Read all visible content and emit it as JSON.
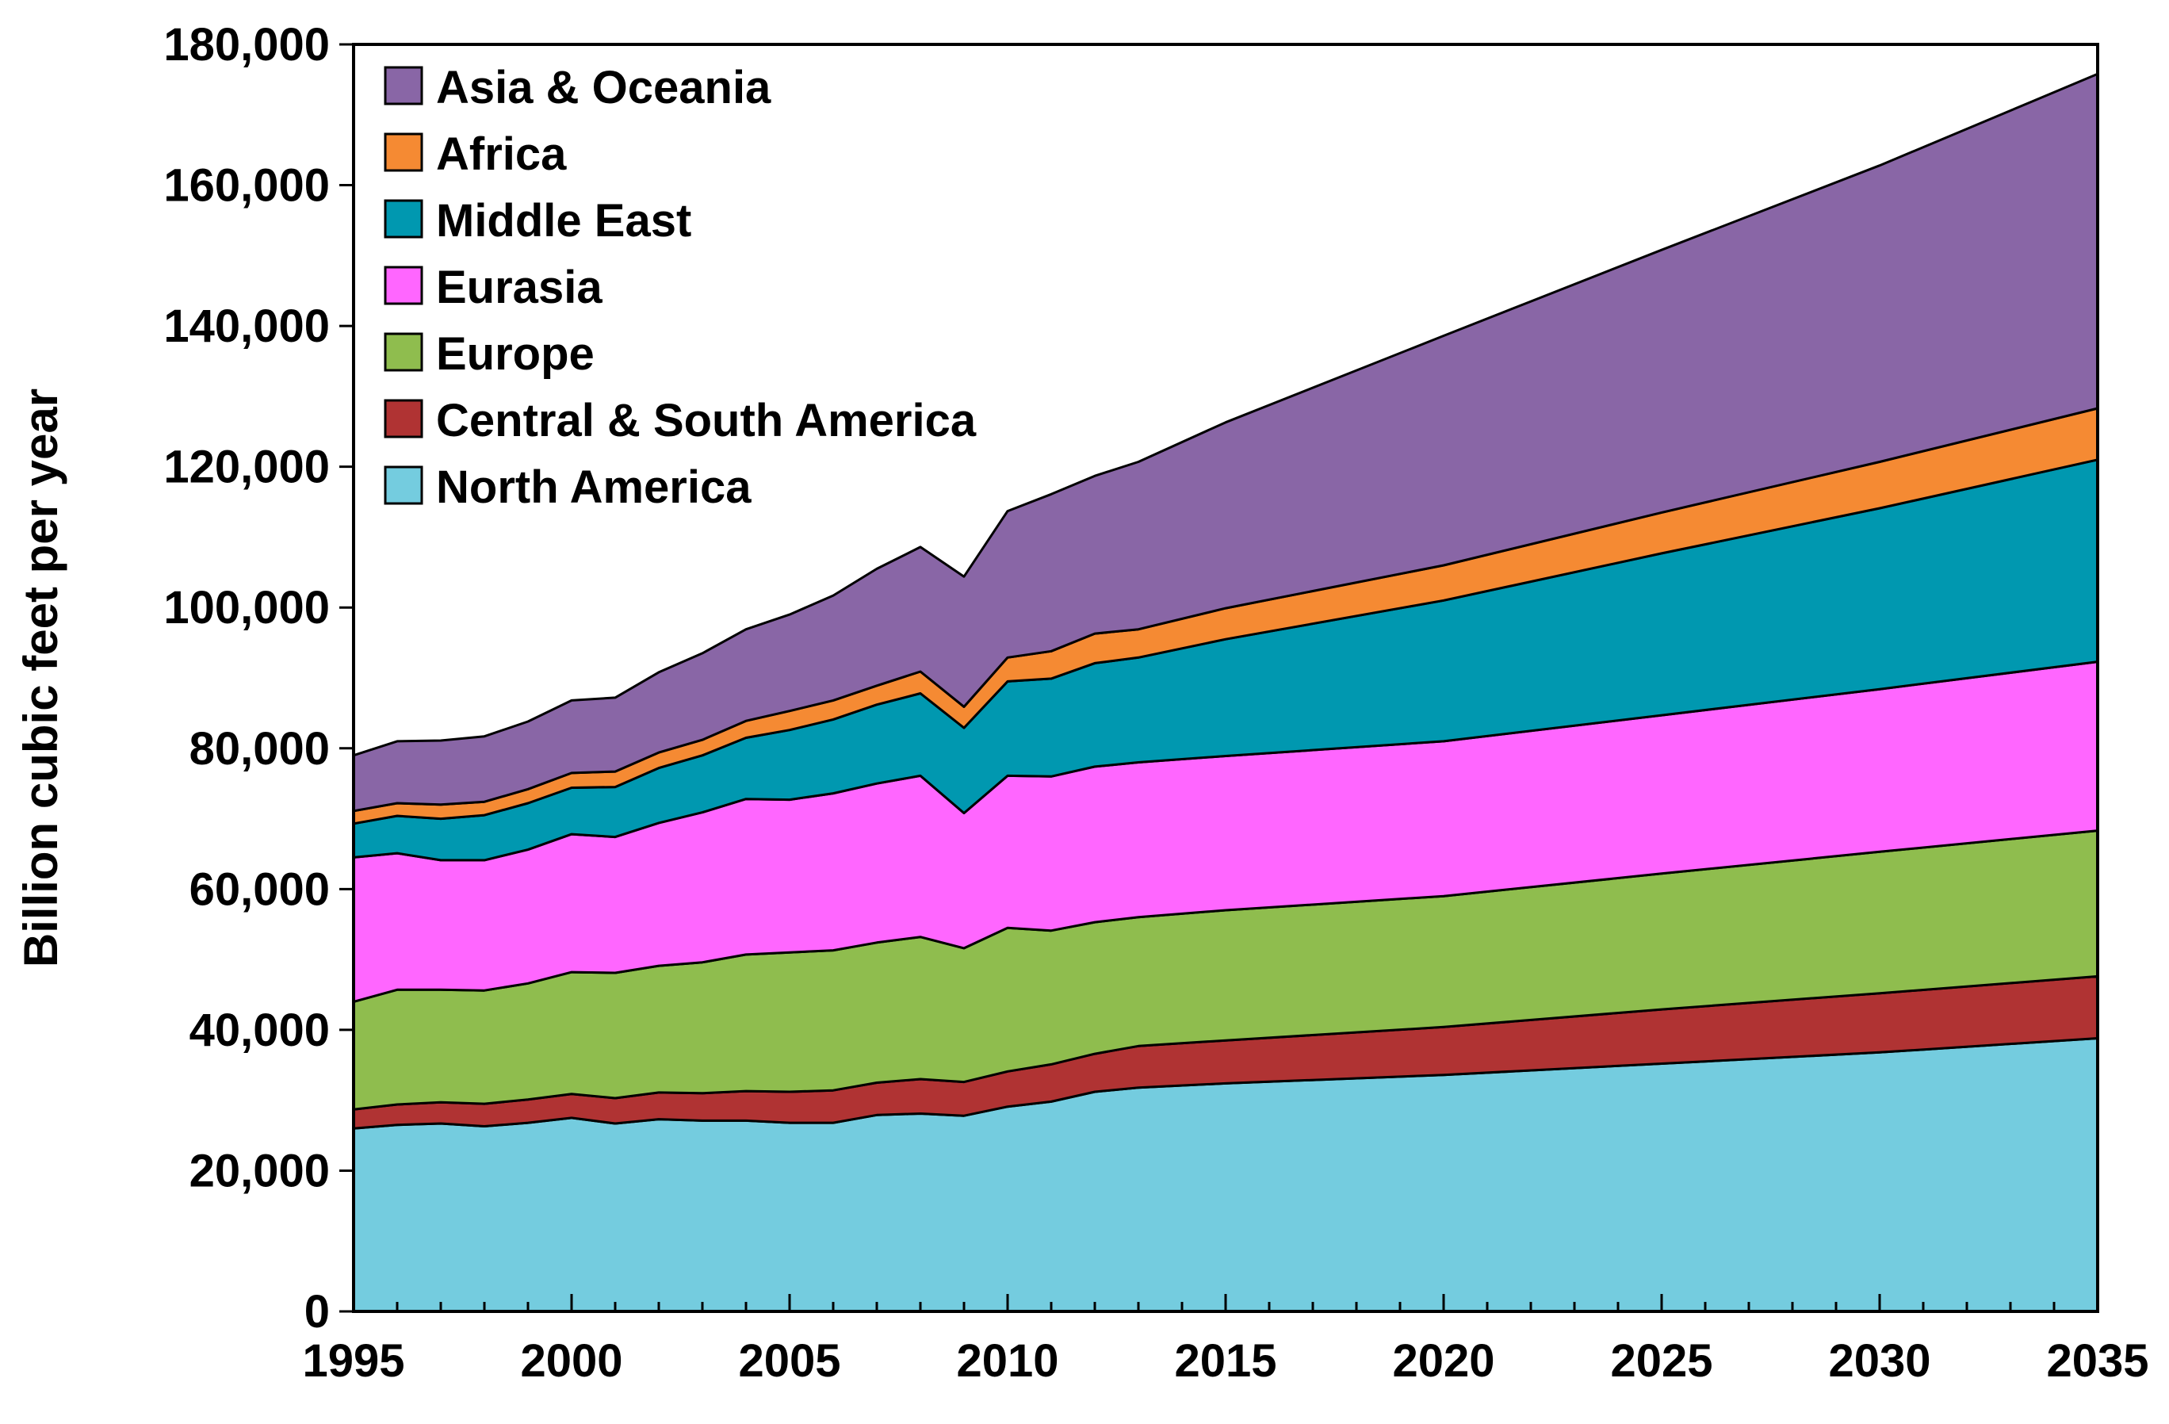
{
  "chart_data": {
    "type": "area",
    "stacked": true,
    "title": "",
    "xlabel": "",
    "ylabel": "Billion cubic feet per year",
    "xlim": [
      1995,
      2035
    ],
    "ylim": [
      0,
      180000
    ],
    "x_ticks": [
      "1995",
      "2000",
      "2005",
      "2010",
      "2015",
      "2020",
      "2025",
      "2030",
      "2035"
    ],
    "x_tick_values": [
      1995,
      2000,
      2005,
      2010,
      2015,
      2020,
      2025,
      2030,
      2035
    ],
    "y_ticks": [
      "0",
      "20,000",
      "40,000",
      "60,000",
      "80,000",
      "100,000",
      "120,000",
      "140,000",
      "160,000",
      "180,000"
    ],
    "y_tick_values": [
      0,
      20000,
      40000,
      60000,
      80000,
      100000,
      120000,
      140000,
      160000,
      180000
    ],
    "legend_position": "top-left",
    "x": [
      1995,
      1996,
      1997,
      1998,
      1999,
      2000,
      2001,
      2002,
      2003,
      2004,
      2005,
      2006,
      2007,
      2008,
      2009,
      2010,
      2011,
      2012,
      2013,
      2015,
      2020,
      2025,
      2030,
      2035
    ],
    "series": [
      {
        "name": "North America",
        "color": "#74CCDF",
        "values": [
          26000,
          26500,
          26700,
          26300,
          26800,
          27500,
          26700,
          27300,
          27100,
          27100,
          26800,
          26800,
          27900,
          28100,
          27800,
          29100,
          29800,
          31200,
          31800,
          32400,
          33600,
          35200,
          36800,
          38800
        ]
      },
      {
        "name": "Central & South America",
        "color": "#B03333",
        "values": [
          2700,
          2900,
          3000,
          3200,
          3300,
          3400,
          3600,
          3800,
          3900,
          4200,
          4400,
          4600,
          4600,
          4900,
          4800,
          5000,
          5300,
          5400,
          5900,
          6100,
          6800,
          7700,
          8400,
          8800
        ]
      },
      {
        "name": "Europe",
        "color": "#8FBD4E",
        "values": [
          15300,
          16300,
          16000,
          16100,
          16500,
          17300,
          17800,
          18000,
          18600,
          19400,
          19800,
          19900,
          19900,
          20200,
          19000,
          20400,
          19000,
          18700,
          18300,
          18500,
          18600,
          19300,
          20100,
          20700
        ]
      },
      {
        "name": "Eurasia",
        "color": "#FF66FF",
        "values": [
          20500,
          19400,
          18400,
          18500,
          19000,
          19600,
          19300,
          20300,
          21300,
          22100,
          21700,
          22300,
          22600,
          22900,
          19200,
          21600,
          21900,
          22100,
          22000,
          21900,
          22000,
          22500,
          23100,
          24000
        ]
      },
      {
        "name": "Middle East",
        "color": "#0098B0",
        "values": [
          4800,
          5300,
          5900,
          6400,
          6600,
          6600,
          7100,
          7800,
          8100,
          8700,
          9900,
          10500,
          11200,
          11700,
          12100,
          13400,
          13900,
          14700,
          14900,
          16600,
          20000,
          23000,
          25700,
          28700
        ]
      },
      {
        "name": "Africa",
        "color": "#F58A33",
        "values": [
          1800,
          1800,
          2000,
          1900,
          2000,
          2100,
          2200,
          2200,
          2200,
          2400,
          2700,
          2700,
          2700,
          3100,
          3000,
          3400,
          3900,
          4200,
          4000,
          4400,
          5000,
          5800,
          6600,
          7300
        ]
      },
      {
        "name": "Asia & Oceania",
        "color": "#8966A6",
        "values": [
          7900,
          8800,
          9100,
          9300,
          9600,
          10300,
          10500,
          11400,
          12300,
          13000,
          13700,
          14900,
          16600,
          17700,
          18500,
          20800,
          22300,
          22400,
          23800,
          26400,
          32600,
          37300,
          42100,
          47500
        ]
      }
    ]
  }
}
